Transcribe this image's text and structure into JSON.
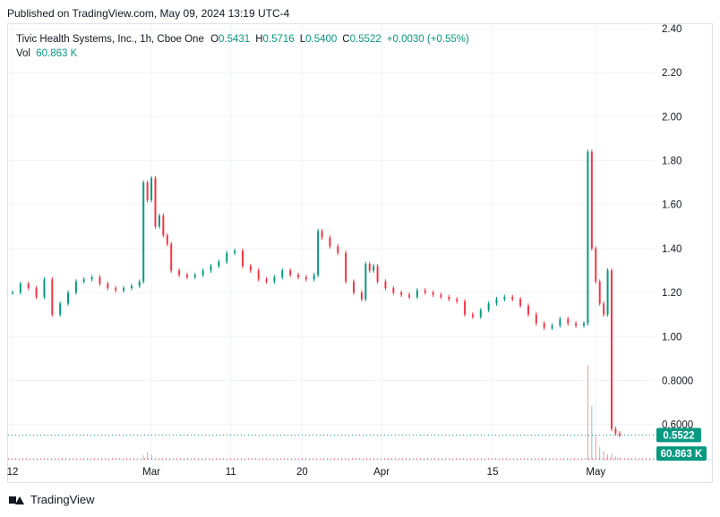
{
  "header": {
    "published": "Published on TradingView.com, May 09, 2024 13:19 UTC-4"
  },
  "legend": {
    "symbol": "Tivic Health Systems, Inc., 1h, Cboe One",
    "o_label": "O",
    "o_value": "0.5431",
    "h_label": "H",
    "h_value": "0.5716",
    "l_label": "L",
    "l_value": "0.5400",
    "c_label": "C",
    "c_value": "0.5522",
    "change": "+0.0030 (+0.55%)",
    "vol_label": "Vol",
    "vol_value": "60.863 K"
  },
  "footer": {
    "brand": "TradingView"
  },
  "colors": {
    "up": "#089981",
    "down": "#f23645",
    "grid": "#f0f3fa",
    "text": "#131722"
  },
  "chart_data": {
    "type": "candlestick",
    "y_ticks": [
      "2.40",
      "2.20",
      "2.00",
      "1.80",
      "1.60",
      "1.40",
      "1.20",
      "1.00",
      "0.8000",
      "0.6000"
    ],
    "y_tick_values": [
      2.4,
      2.2,
      2.0,
      1.8,
      1.6,
      1.4,
      1.2,
      1.0,
      0.8,
      0.6
    ],
    "ylim": [
      0.44,
      2.42
    ],
    "x_labels": [
      {
        "label": "12",
        "x": 0.0
      },
      {
        "label": "Mar",
        "x": 17.5
      },
      {
        "label": "11",
        "x": 27.5
      },
      {
        "label": "20",
        "x": 36.5
      },
      {
        "label": "Apr",
        "x": 46.5
      },
      {
        "label": "15",
        "x": 60.5
      },
      {
        "label": "May",
        "x": 73.5
      }
    ],
    "x_range": [
      0,
      79
    ],
    "last_price_label": "0.5522",
    "last_price": 0.5522,
    "last_volume_label": "60.863 K",
    "series_close": [
      [
        0,
        1.2
      ],
      [
        1,
        1.24
      ],
      [
        2,
        1.22
      ],
      [
        3,
        1.18
      ],
      [
        4,
        1.26
      ],
      [
        5,
        1.1
      ],
      [
        6,
        1.15
      ],
      [
        7,
        1.2
      ],
      [
        8,
        1.25
      ],
      [
        9,
        1.26
      ],
      [
        10,
        1.27
      ],
      [
        11,
        1.24
      ],
      [
        12,
        1.22
      ],
      [
        13,
        1.21
      ],
      [
        14,
        1.22
      ],
      [
        15,
        1.23
      ],
      [
        16,
        1.25
      ],
      [
        16.5,
        1.7
      ],
      [
        17,
        1.62
      ],
      [
        17.5,
        1.72
      ],
      [
        18,
        1.5
      ],
      [
        18.5,
        1.55
      ],
      [
        19,
        1.46
      ],
      [
        19.5,
        1.42
      ],
      [
        20,
        1.3
      ],
      [
        21,
        1.28
      ],
      [
        22,
        1.27
      ],
      [
        23,
        1.28
      ],
      [
        24,
        1.3
      ],
      [
        25,
        1.32
      ],
      [
        26,
        1.34
      ],
      [
        27,
        1.38
      ],
      [
        28,
        1.39
      ],
      [
        29,
        1.32
      ],
      [
        30,
        1.3
      ],
      [
        31,
        1.26
      ],
      [
        32,
        1.25
      ],
      [
        33,
        1.27
      ],
      [
        34,
        1.3
      ],
      [
        35,
        1.28
      ],
      [
        36,
        1.27
      ],
      [
        37,
        1.26
      ],
      [
        38,
        1.28
      ],
      [
        38.5,
        1.48
      ],
      [
        39,
        1.45
      ],
      [
        40,
        1.41
      ],
      [
        41,
        1.38
      ],
      [
        42,
        1.25
      ],
      [
        43,
        1.2
      ],
      [
        44,
        1.17
      ],
      [
        44.5,
        1.33
      ],
      [
        45,
        1.3
      ],
      [
        45.5,
        1.32
      ],
      [
        46,
        1.25
      ],
      [
        47,
        1.22
      ],
      [
        48,
        1.2
      ],
      [
        49,
        1.19
      ],
      [
        50,
        1.18
      ],
      [
        51,
        1.21
      ],
      [
        52,
        1.2
      ],
      [
        53,
        1.19
      ],
      [
        54,
        1.18
      ],
      [
        55,
        1.17
      ],
      [
        56,
        1.16
      ],
      [
        57,
        1.1
      ],
      [
        58,
        1.09
      ],
      [
        59,
        1.12
      ],
      [
        60,
        1.15
      ],
      [
        61,
        1.17
      ],
      [
        62,
        1.18
      ],
      [
        63,
        1.17
      ],
      [
        64,
        1.14
      ],
      [
        65,
        1.1
      ],
      [
        66,
        1.06
      ],
      [
        67,
        1.04
      ],
      [
        68,
        1.05
      ],
      [
        69,
        1.08
      ],
      [
        70,
        1.06
      ],
      [
        71,
        1.05
      ],
      [
        72,
        1.06
      ],
      [
        72.5,
        1.84
      ],
      [
        73,
        1.4
      ],
      [
        73.5,
        1.25
      ],
      [
        74,
        1.15
      ],
      [
        74.5,
        1.1
      ],
      [
        75,
        1.3
      ],
      [
        75.5,
        0.58
      ],
      [
        76,
        0.56
      ],
      [
        76.5,
        0.5522
      ]
    ],
    "volume_spikes": [
      [
        16.5,
        0.04
      ],
      [
        17,
        0.07
      ],
      [
        17.5,
        0.05
      ],
      [
        72.5,
        0.88
      ],
      [
        73,
        0.5
      ],
      [
        73.5,
        0.22
      ],
      [
        74,
        0.12
      ],
      [
        74.5,
        0.08
      ],
      [
        75,
        0.05
      ],
      [
        75.5,
        0.06
      ],
      [
        76,
        0.03
      ],
      [
        76.5,
        0.02
      ]
    ]
  }
}
